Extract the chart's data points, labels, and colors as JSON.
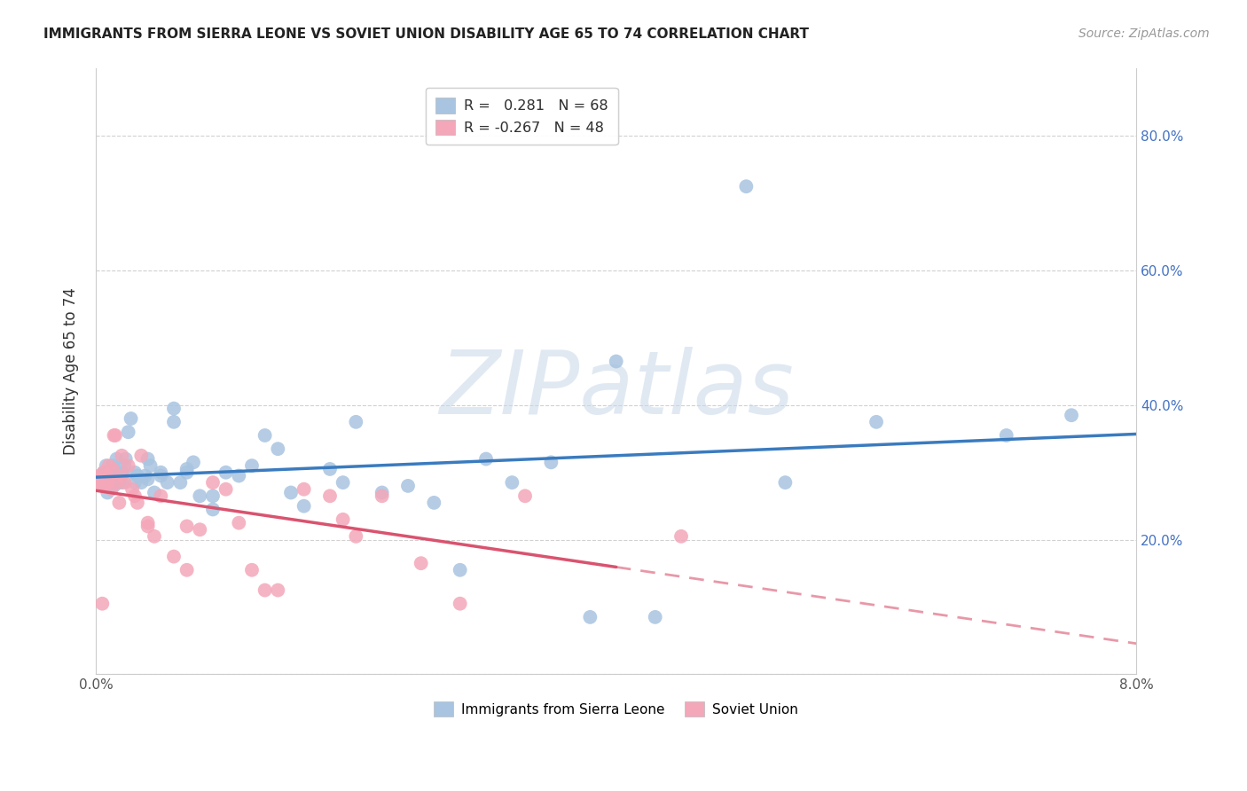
{
  "title": "IMMIGRANTS FROM SIERRA LEONE VS SOVIET UNION DISABILITY AGE 65 TO 74 CORRELATION CHART",
  "source": "Source: ZipAtlas.com",
  "ylabel": "Disability Age 65 to 74",
  "xlim": [
    0.0,
    0.08
  ],
  "ylim": [
    0.0,
    0.9
  ],
  "sierra_leone_R": 0.281,
  "sierra_leone_N": 68,
  "soviet_union_R": -0.267,
  "soviet_union_N": 48,
  "sierra_leone_color": "#a8c4e0",
  "soviet_union_color": "#f4a7b9",
  "sierra_leone_line_color": "#3a7bbf",
  "soviet_union_line_color": "#d9536f",
  "sierra_leone_x": [
    0.0005,
    0.0006,
    0.0007,
    0.0008,
    0.0009,
    0.001,
    0.001,
    0.001,
    0.0012,
    0.0013,
    0.0014,
    0.0015,
    0.0016,
    0.0017,
    0.0018,
    0.002,
    0.002,
    0.002,
    0.0022,
    0.0023,
    0.0025,
    0.0027,
    0.003,
    0.003,
    0.0032,
    0.0035,
    0.0038,
    0.004,
    0.004,
    0.0042,
    0.0045,
    0.005,
    0.005,
    0.0055,
    0.006,
    0.006,
    0.0065,
    0.007,
    0.007,
    0.0075,
    0.008,
    0.009,
    0.009,
    0.01,
    0.011,
    0.012,
    0.013,
    0.014,
    0.015,
    0.016,
    0.018,
    0.019,
    0.02,
    0.022,
    0.024,
    0.026,
    0.028,
    0.03,
    0.032,
    0.035,
    0.038,
    0.04,
    0.043,
    0.05,
    0.053,
    0.06,
    0.07,
    0.075
  ],
  "sierra_leone_y": [
    0.29,
    0.3,
    0.28,
    0.31,
    0.27,
    0.3,
    0.285,
    0.295,
    0.29,
    0.31,
    0.28,
    0.3,
    0.32,
    0.29,
    0.285,
    0.295,
    0.3,
    0.285,
    0.31,
    0.32,
    0.36,
    0.38,
    0.285,
    0.3,
    0.295,
    0.285,
    0.295,
    0.32,
    0.29,
    0.31,
    0.27,
    0.3,
    0.295,
    0.285,
    0.375,
    0.395,
    0.285,
    0.305,
    0.3,
    0.315,
    0.265,
    0.245,
    0.265,
    0.3,
    0.295,
    0.31,
    0.355,
    0.335,
    0.27,
    0.25,
    0.305,
    0.285,
    0.375,
    0.27,
    0.28,
    0.255,
    0.155,
    0.32,
    0.285,
    0.315,
    0.085,
    0.465,
    0.085,
    0.725,
    0.285,
    0.375,
    0.355,
    0.385
  ],
  "soviet_union_x": [
    0.0001,
    0.0002,
    0.0003,
    0.0004,
    0.0005,
    0.0006,
    0.0007,
    0.0008,
    0.0009,
    0.001,
    0.001,
    0.0012,
    0.0013,
    0.0014,
    0.0015,
    0.0016,
    0.0018,
    0.002,
    0.002,
    0.0022,
    0.0025,
    0.0028,
    0.003,
    0.0032,
    0.0035,
    0.004,
    0.004,
    0.0045,
    0.005,
    0.006,
    0.007,
    0.007,
    0.008,
    0.009,
    0.01,
    0.011,
    0.012,
    0.013,
    0.014,
    0.016,
    0.018,
    0.019,
    0.02,
    0.022,
    0.025,
    0.028,
    0.033,
    0.045
  ],
  "soviet_union_y": [
    0.29,
    0.285,
    0.295,
    0.285,
    0.105,
    0.3,
    0.28,
    0.295,
    0.285,
    0.29,
    0.31,
    0.275,
    0.305,
    0.355,
    0.355,
    0.285,
    0.255,
    0.325,
    0.295,
    0.285,
    0.31,
    0.275,
    0.265,
    0.255,
    0.325,
    0.22,
    0.225,
    0.205,
    0.265,
    0.175,
    0.155,
    0.22,
    0.215,
    0.285,
    0.275,
    0.225,
    0.155,
    0.125,
    0.125,
    0.275,
    0.265,
    0.23,
    0.205,
    0.265,
    0.165,
    0.105,
    0.265,
    0.205
  ],
  "watermark_text": "ZIPatlas",
  "watermark_color": "#c8d8e8",
  "background_color": "#ffffff",
  "grid_color": "#cccccc",
  "ytick_color": "#4472c4",
  "legend_R_color_sl": "#0070c0",
  "legend_R_color_su": "#c0004a",
  "legend_N_color": "#333333"
}
